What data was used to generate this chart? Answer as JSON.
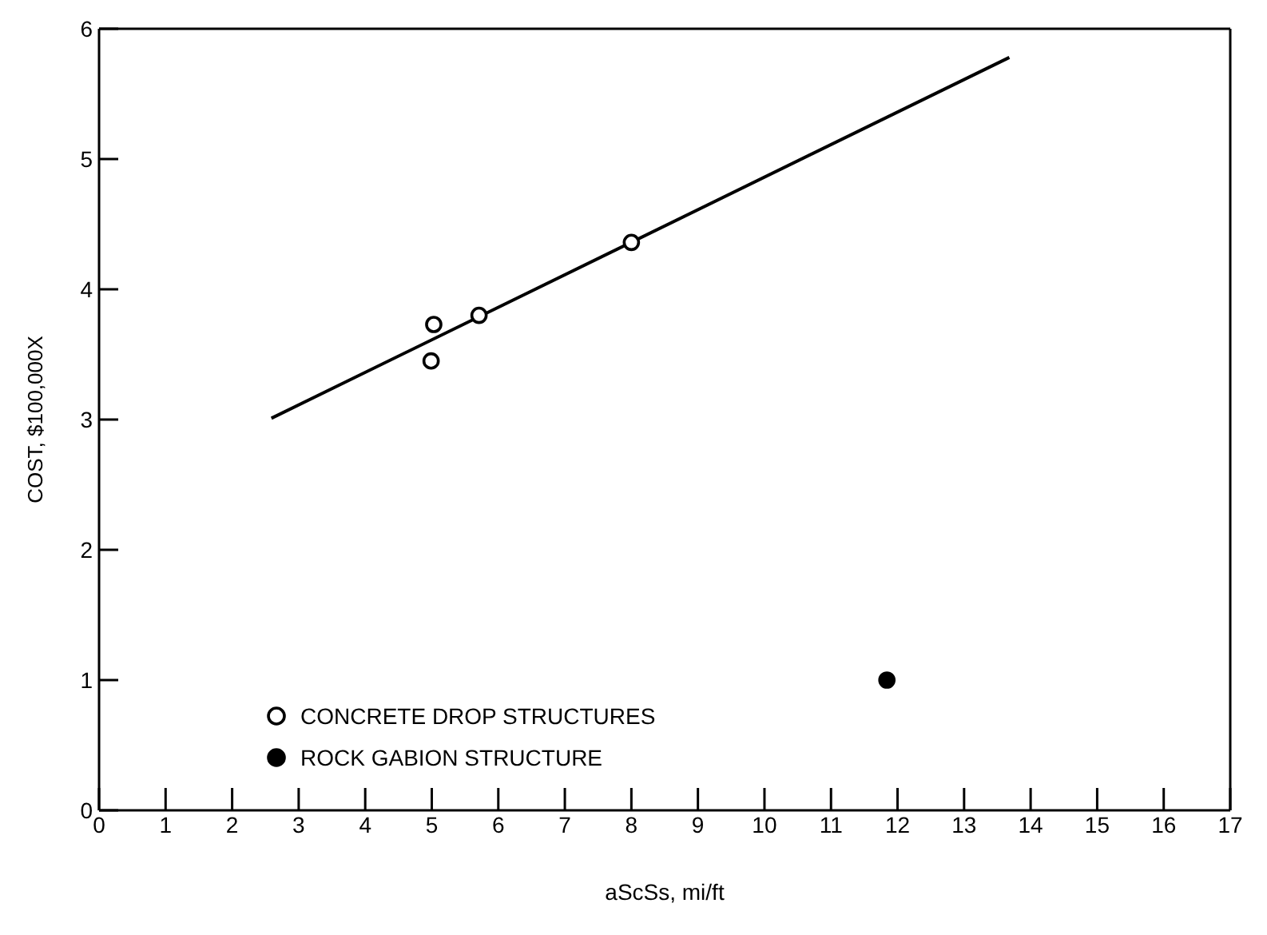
{
  "chart_data": {
    "type": "scatter",
    "xlabel": "aScSs, mi/ft",
    "ylabel": "COST, $100,000X",
    "xlim": [
      0,
      17
    ],
    "xticks": [
      0,
      1,
      2,
      3,
      4,
      5,
      6,
      7,
      8,
      9,
      10,
      11,
      12,
      13,
      14,
      15,
      16,
      17
    ],
    "ylim": [
      0,
      6
    ],
    "yticks": [
      0,
      1,
      2,
      3,
      4,
      5,
      6
    ],
    "grid": false,
    "legend": "bottom left",
    "series": [
      {
        "name": "CONCRETE DROP STRUCTURES",
        "color": "#000000",
        "marker": "circle",
        "x": [
          4.99,
          5.03,
          5.71,
          8.0
        ],
        "values": [
          3.45,
          3.73,
          3.8,
          4.36
        ]
      },
      {
        "name": "ROCK GABION STRUCTURE",
        "color": "#000000",
        "marker": "circle",
        "x": [
          11.84
        ],
        "values": [
          1.0
        ]
      },
      {
        "type": "line",
        "color": "#000000",
        "marker": "none",
        "x": [
          2.59,
          13.68
        ],
        "values": [
          3.01,
          5.78
        ]
      }
    ]
  }
}
